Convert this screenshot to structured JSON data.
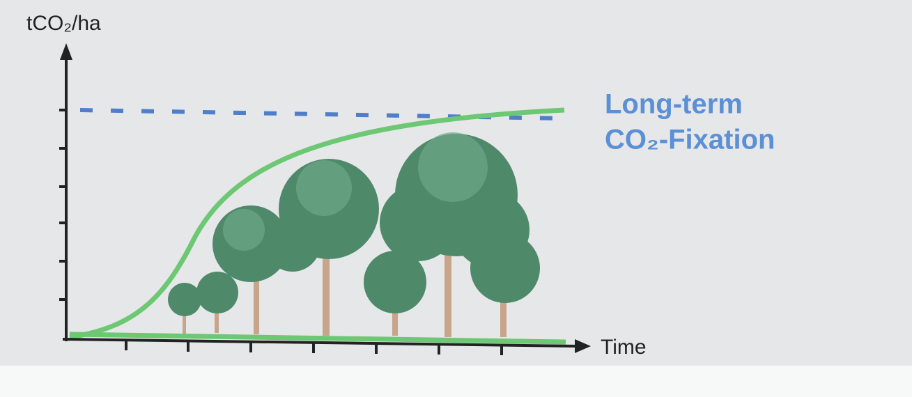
{
  "axes": {
    "y_label": "tCO₂/ha",
    "x_label": "Time"
  },
  "annotation": {
    "lines": [
      "Long-term",
      "CO₂-Fixation"
    ]
  }
}
